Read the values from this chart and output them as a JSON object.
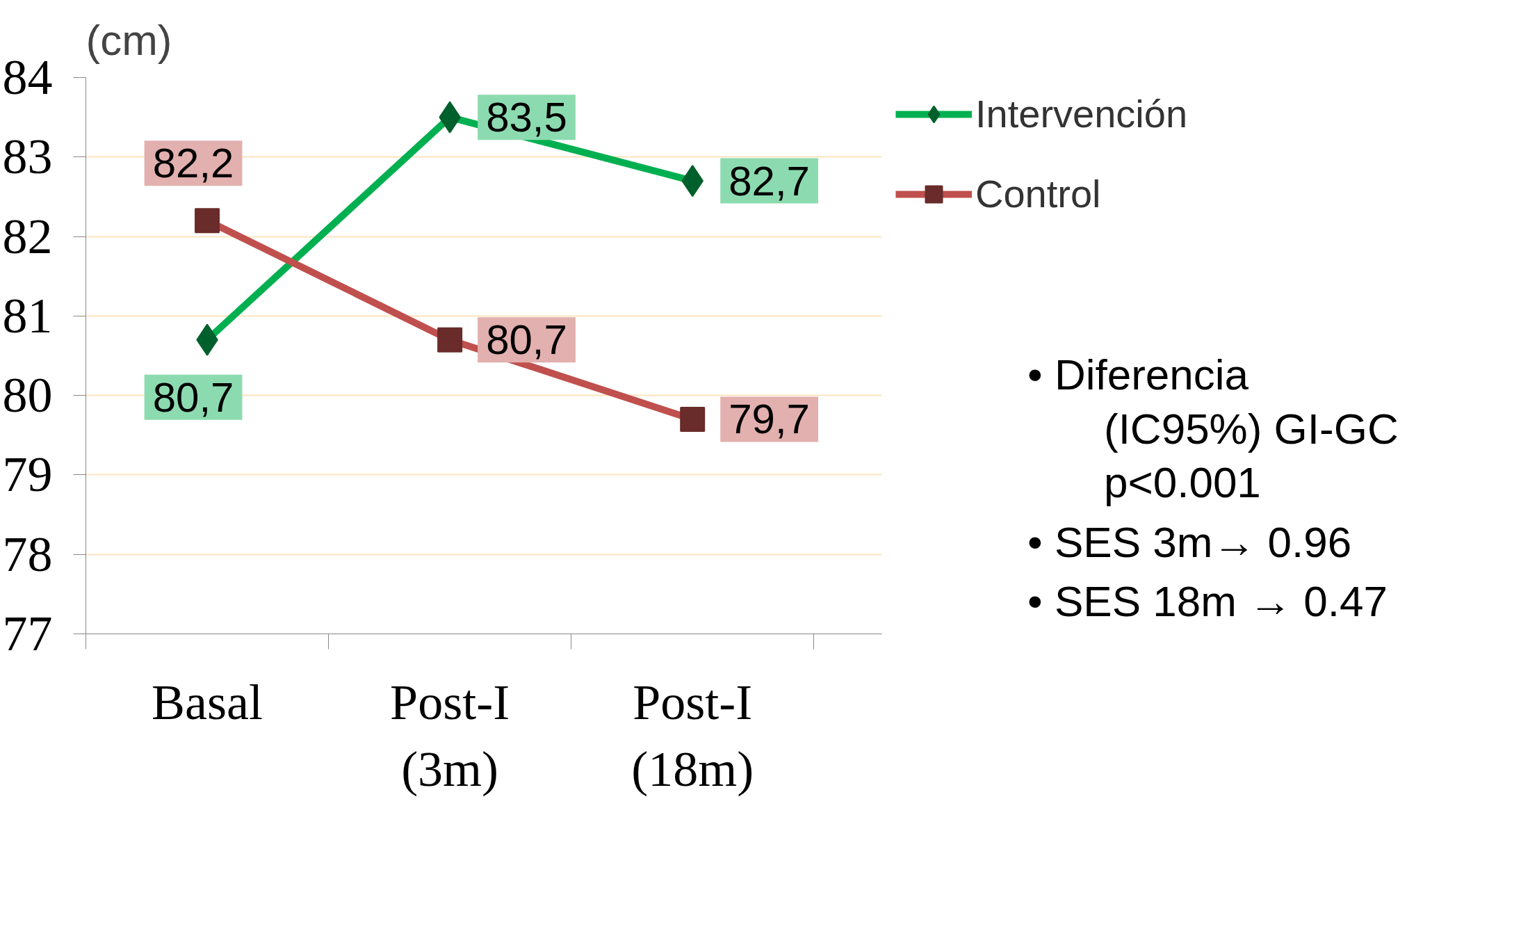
{
  "chart_data": {
    "type": "line",
    "ylabel": "(cm)",
    "categories": [
      "Basal",
      "Post-I\n(3m)",
      "Post-I\n(18m)"
    ],
    "series": [
      {
        "name": "Intervención",
        "color": "#00b050",
        "marker": "diamond",
        "values": [
          80.7,
          83.5,
          82.7
        ],
        "value_labels": [
          "80,7",
          "83,5",
          "82,7"
        ]
      },
      {
        "name": "Control",
        "color": "#c0504d",
        "marker": "square",
        "values": [
          82.2,
          80.7,
          79.7
        ],
        "value_labels": [
          "82,2",
          "80,7",
          "79,7"
        ]
      }
    ],
    "ylim": [
      77,
      84
    ],
    "yticks": [
      77,
      78,
      79,
      80,
      81,
      82,
      83,
      84
    ],
    "grid": "y",
    "legend": "top right",
    "annotations": [
      "• Diferencia (IC95%) GI-GC p<0.001",
      "• SES 3m→ 0.96",
      "• SES 18m → 0.47"
    ]
  }
}
